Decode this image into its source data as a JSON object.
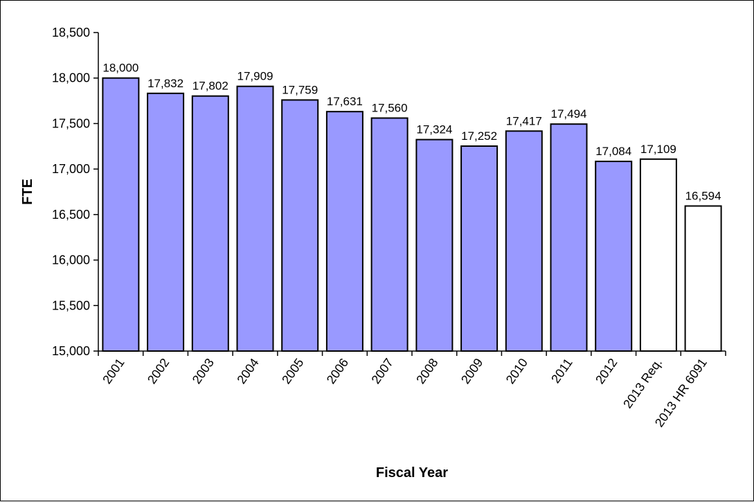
{
  "chart_data": {
    "type": "bar",
    "title": "",
    "xlabel": "Fiscal Year",
    "ylabel": "FTE",
    "ylim": [
      15000,
      18500
    ],
    "ytick_step": 500,
    "ytick_labels": [
      "15,000",
      "15,500",
      "16,000",
      "16,500",
      "17,000",
      "17,500",
      "18,000",
      "18,500"
    ],
    "grid": false,
    "legend": "none",
    "categories": [
      "2001",
      "2002",
      "2003",
      "2004",
      "2005",
      "2006",
      "2007",
      "2008",
      "2009",
      "2010",
      "2011",
      "2012",
      "2013 Req.",
      "2013 HR 6091"
    ],
    "values": [
      18000,
      17832,
      17802,
      17909,
      17759,
      17631,
      17560,
      17324,
      17252,
      17417,
      17494,
      17084,
      17109,
      16594
    ],
    "value_labels": [
      "18,000",
      "17,832",
      "17,802",
      "17,909",
      "17,759",
      "17,631",
      "17,560",
      "17,324",
      "17,252",
      "17,417",
      "17,494",
      "17,084",
      "17,109",
      "16,594"
    ],
    "bar_fill": [
      "#9999ff",
      "#9999ff",
      "#9999ff",
      "#9999ff",
      "#9999ff",
      "#9999ff",
      "#9999ff",
      "#9999ff",
      "#9999ff",
      "#9999ff",
      "#9999ff",
      "#9999ff",
      "#ffffff",
      "#ffffff"
    ],
    "bar_stroke": "#000000",
    "axis_color": "#000000"
  }
}
